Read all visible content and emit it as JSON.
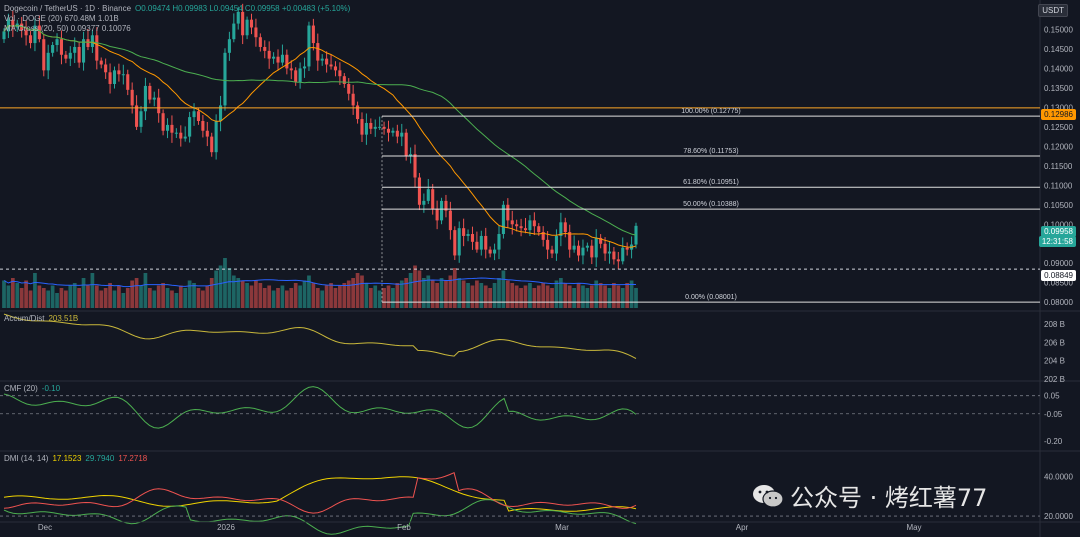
{
  "header": {
    "symbol": "Dogecoin / TetherUS · 1D · Binance",
    "ohlc": "O0.09474  H0.09983  L0.09454  C0.09958  +0.00483 (+5.10%)",
    "vol_line": "Vol · DOGE (20)  670.48M  1.01B",
    "ma_line": "MA Cross (20, 50)  0.09377  0.10076",
    "currency": "USDT"
  },
  "price_badges": {
    "current": "0.09958",
    "countdown": "12:31:58",
    "level_high": "0.12986",
    "level_low": "0.08849"
  },
  "colors": {
    "up": "#26a69a",
    "down": "#ef5350",
    "ma20": "#ff9800",
    "ma50": "#4caf50",
    "vol_ma": "#2962ff",
    "fib": "#e0e0e0",
    "hline": "#ffa726",
    "adl": "#c9b83b",
    "cmf": "#4caf50",
    "dmi_adx": "#f0d300",
    "dmi_plus": "#4caf50",
    "dmi_minus": "#ef5350",
    "bg": "#131722"
  },
  "chart_data": {
    "type": "candlestick",
    "price_axis": {
      "min": 0.078,
      "max": 0.1555,
      "ticks": [
        "0.15000",
        "0.14500",
        "0.14000",
        "0.13500",
        "0.13000",
        "0.12500",
        "0.12000",
        "0.11500",
        "0.11000",
        "0.10500",
        "0.10000",
        "0.09500",
        "0.09000",
        "0.08500",
        "0.08000"
      ]
    },
    "time_axis": {
      "labels": [
        "Dec",
        "2026",
        "Feb",
        "Mar",
        "Apr",
        "May"
      ]
    },
    "fib_levels": [
      {
        "label": "100.00% (0.12775)",
        "value": 0.12775
      },
      {
        "label": "78.60% (0.11753)",
        "value": 0.11753
      },
      {
        "label": "61.80% (0.10951)",
        "value": 0.10951
      },
      {
        "label": "50.00% (0.10388)",
        "value": 0.10388
      },
      {
        "label": "0.00% (0.08001)",
        "value": 0.08001
      }
    ],
    "hlines": [
      0.12986
    ],
    "dashed_level": 0.08849,
    "closes": [
      0.1495,
      0.1525,
      0.1505,
      0.1515,
      0.1498,
      0.1485,
      0.1465,
      0.151,
      0.1475,
      0.1395,
      0.144,
      0.146,
      0.1475,
      0.1435,
      0.1425,
      0.144,
      0.1455,
      0.1415,
      0.1475,
      0.1455,
      0.1485,
      0.142,
      0.141,
      0.139,
      0.136,
      0.1395,
      0.1385,
      0.1385,
      0.1345,
      0.1305,
      0.125,
      0.129,
      0.1355,
      0.132,
      0.1325,
      0.1285,
      0.124,
      0.1255,
      0.1235,
      0.1235,
      0.122,
      0.1225,
      0.1275,
      0.129,
      0.1265,
      0.124,
      0.1225,
      0.1185,
      0.1265,
      0.1305,
      0.144,
      0.1475,
      0.1515,
      0.1545,
      0.1485,
      0.1525,
      0.1505,
      0.148,
      0.1455,
      0.1445,
      0.1425,
      0.143,
      0.1415,
      0.1435,
      0.14,
      0.1395,
      0.1365,
      0.14,
      0.1405,
      0.151,
      0.1465,
      0.142,
      0.1425,
      0.141,
      0.1405,
      0.1395,
      0.138,
      0.136,
      0.1335,
      0.1305,
      0.127,
      0.123,
      0.126,
      0.1245,
      0.125,
      0.125,
      0.1245,
      0.1235,
      0.124,
      0.1225,
      0.1235,
      0.1175,
      0.118,
      0.112,
      0.105,
      0.106,
      0.109,
      0.104,
      0.101,
      0.106,
      0.1035,
      0.0985,
      0.092,
      0.099,
      0.097,
      0.0975,
      0.0955,
      0.0935,
      0.097,
      0.0935,
      0.0925,
      0.0935,
      0.0975,
      0.105,
      0.101,
      0.1,
      0.0995,
      0.099,
      0.0985,
      0.101,
      0.0995,
      0.098,
      0.096,
      0.0935,
      0.0925,
      0.097,
      0.1005,
      0.098,
      0.0935,
      0.0945,
      0.092,
      0.094,
      0.0945,
      0.0915,
      0.0965,
      0.095,
      0.0925,
      0.093,
      0.091,
      0.0905,
      0.094,
      0.0935,
      0.0948,
      0.0996
    ],
    "volumes": [
      0.55,
      0.45,
      0.6,
      0.5,
      0.4,
      0.55,
      0.35,
      0.7,
      0.45,
      0.4,
      0.35,
      0.45,
      0.3,
      0.4,
      0.35,
      0.45,
      0.5,
      0.4,
      0.6,
      0.45,
      0.7,
      0.45,
      0.35,
      0.4,
      0.5,
      0.35,
      0.45,
      0.3,
      0.4,
      0.55,
      0.6,
      0.45,
      0.7,
      0.4,
      0.35,
      0.45,
      0.5,
      0.4,
      0.35,
      0.3,
      0.45,
      0.4,
      0.55,
      0.5,
      0.4,
      0.35,
      0.45,
      0.6,
      0.75,
      0.85,
      1.0,
      0.8,
      0.65,
      0.6,
      0.55,
      0.5,
      0.45,
      0.55,
      0.5,
      0.4,
      0.45,
      0.35,
      0.4,
      0.45,
      0.35,
      0.4,
      0.5,
      0.45,
      0.55,
      0.65,
      0.5,
      0.4,
      0.35,
      0.45,
      0.5,
      0.4,
      0.45,
      0.5,
      0.55,
      0.6,
      0.7,
      0.65,
      0.5,
      0.4,
      0.45,
      0.35,
      0.4,
      0.45,
      0.4,
      0.5,
      0.55,
      0.6,
      0.7,
      0.85,
      0.75,
      0.6,
      0.65,
      0.55,
      0.5,
      0.6,
      0.55,
      0.65,
      0.8,
      0.6,
      0.55,
      0.5,
      0.45,
      0.55,
      0.5,
      0.45,
      0.4,
      0.5,
      0.6,
      0.75,
      0.55,
      0.5,
      0.45,
      0.4,
      0.45,
      0.5,
      0.4,
      0.45,
      0.5,
      0.45,
      0.4,
      0.55,
      0.6,
      0.5,
      0.45,
      0.4,
      0.5,
      0.45,
      0.4,
      0.45,
      0.55,
      0.5,
      0.45,
      0.4,
      0.5,
      0.45,
      0.4,
      0.5,
      0.55,
      0.4
    ],
    "accum_dist": {
      "label": "Accum/Dist",
      "value": "203.51B",
      "ticks": [
        "208 B",
        "206 B",
        "204 B",
        "202 B"
      ],
      "range": [
        201.9,
        209.2
      ]
    },
    "cmf": {
      "label": "CMF (20)",
      "value": "-0.10",
      "ticks": [
        "0.05",
        "-0.05",
        "-0.20"
      ],
      "range": [
        -0.25,
        0.12
      ],
      "dashed": [
        0.05,
        -0.05
      ]
    },
    "dmi": {
      "label": "DMI (14, 14)",
      "values": [
        "17.1523",
        "29.7940",
        "17.2718"
      ],
      "ticks": [
        "40.0000",
        "20.0000"
      ],
      "range": [
        18,
        52
      ],
      "dashed": [
        20
      ]
    }
  },
  "watermark": {
    "text": "公众号 · 烤红薯77"
  }
}
